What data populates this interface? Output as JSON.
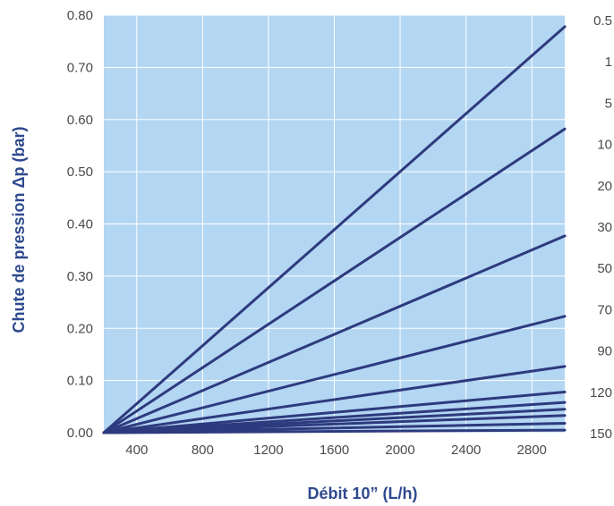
{
  "chart_data": {
    "type": "line",
    "xlabel": "Débit 10” (L/h)",
    "ylabel": "Chute de pression Δp (bar)",
    "xlim": [
      200,
      3000
    ],
    "ylim": [
      0,
      0.8
    ],
    "x_ticks": [
      "400",
      "800",
      "1200",
      "1600",
      "2000",
      "2400",
      "2800"
    ],
    "y_ticks": [
      "0.00",
      "0.10",
      "0.20",
      "0.30",
      "0.40",
      "0.50",
      "0.60",
      "0.70",
      "0.80"
    ],
    "right_labels": [
      "0.5",
      "1",
      "5",
      "10",
      "20",
      "30",
      "50",
      "70",
      "90",
      "120",
      "150"
    ],
    "grid": true,
    "series": [
      {
        "x": [
          200,
          3000
        ],
        "y": [
          0,
          0.778
        ]
      },
      {
        "x": [
          200,
          3000
        ],
        "y": [
          0,
          0.582
        ]
      },
      {
        "x": [
          200,
          3000
        ],
        "y": [
          0,
          0.377
        ]
      },
      {
        "x": [
          200,
          3000
        ],
        "y": [
          0,
          0.223
        ]
      },
      {
        "x": [
          200,
          3000
        ],
        "y": [
          0,
          0.127
        ]
      },
      {
        "x": [
          200,
          3000
        ],
        "y": [
          0,
          0.078
        ]
      },
      {
        "x": [
          200,
          3000
        ],
        "y": [
          0,
          0.058
        ]
      },
      {
        "x": [
          200,
          3000
        ],
        "y": [
          0,
          0.045
        ]
      },
      {
        "x": [
          200,
          3000
        ],
        "y": [
          0,
          0.033
        ]
      },
      {
        "x": [
          200,
          3000
        ],
        "y": [
          0,
          0.018
        ]
      },
      {
        "x": [
          200,
          3000
        ],
        "y": [
          0,
          0.005
        ]
      }
    ],
    "colors": {
      "plot_bg": "#b3d6f2",
      "grid": "#ffffff",
      "line": "#2e3a7e",
      "title": "#2e4a8e"
    }
  }
}
